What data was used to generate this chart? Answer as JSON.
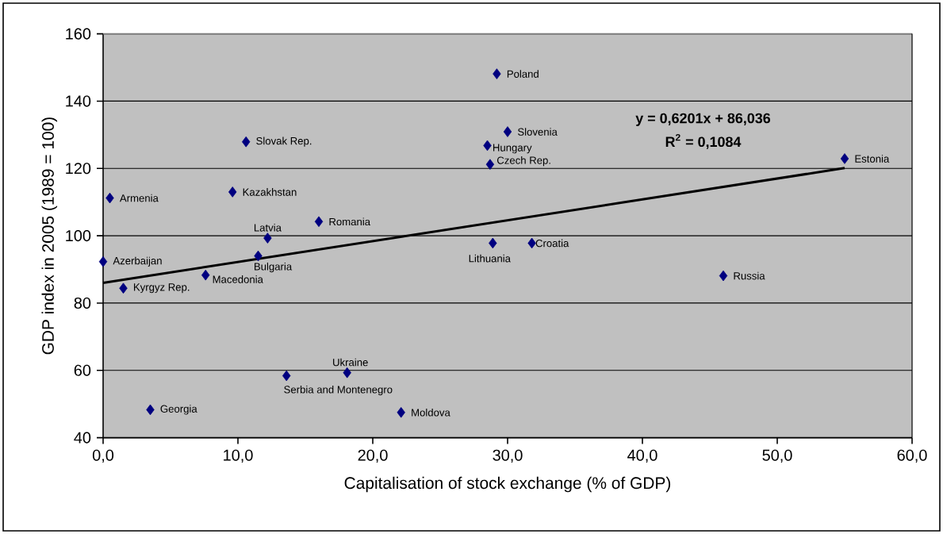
{
  "chart_data": {
    "type": "scatter",
    "xlabel": "Capitalisation of stock exchange (% of GDP)",
    "ylabel": "GDP index in 2005 (1989 = 100)",
    "xlim": [
      0,
      60
    ],
    "ylim": [
      40,
      160
    ],
    "xticks": [
      {
        "value": 0,
        "label": "0,0"
      },
      {
        "value": 10,
        "label": "10,0"
      },
      {
        "value": 20,
        "label": "20,0"
      },
      {
        "value": 30,
        "label": "30,0"
      },
      {
        "value": 40,
        "label": "40,0"
      },
      {
        "value": 50,
        "label": "50,0"
      },
      {
        "value": 60,
        "label": "60,0"
      }
    ],
    "yticks": [
      40,
      60,
      80,
      100,
      120,
      140,
      160
    ],
    "grid": "y",
    "marker": "diamond",
    "annotations": [
      "y = 0,6201x + 86,036",
      "R$^{2}$ = 0,1084"
    ],
    "series": [
      {
        "name": "Poland",
        "color": "#000080",
        "x": [
          29.2
        ],
        "values": [
          148.1
        ]
      },
      {
        "name": "Slovenia",
        "color": "#000080",
        "x": [
          30.0
        ],
        "values": [
          130.9
        ]
      },
      {
        "name": "Hungary",
        "color": "#000080",
        "x": [
          28.5
        ],
        "values": [
          126.8
        ]
      },
      {
        "name": "Czech Rep.",
        "color": "#000080",
        "x": [
          28.7
        ],
        "values": [
          121.2
        ]
      },
      {
        "name": "Estonia",
        "color": "#000080",
        "x": [
          55.0
        ],
        "values": [
          122.9
        ]
      },
      {
        "name": "Slovak Rep.",
        "color": "#000080",
        "x": [
          10.6
        ],
        "values": [
          127.9
        ]
      },
      {
        "name": "Armenia",
        "color": "#000080",
        "x": [
          0.5
        ],
        "values": [
          111.2
        ]
      },
      {
        "name": "Kazakhstan",
        "color": "#000080",
        "x": [
          9.6
        ],
        "values": [
          113.0
        ]
      },
      {
        "name": "Romania",
        "color": "#000080",
        "x": [
          16.0
        ],
        "values": [
          104.2
        ]
      },
      {
        "name": "Latvia",
        "color": "#000080",
        "x": [
          12.2
        ],
        "values": [
          99.3
        ]
      },
      {
        "name": "Bulgaria",
        "color": "#000080",
        "x": [
          11.5
        ],
        "values": [
          94.0
        ]
      },
      {
        "name": "Azerbaijan",
        "color": "#000080",
        "x": [
          0.0
        ],
        "values": [
          92.3
        ]
      },
      {
        "name": "Lithuania",
        "color": "#000080",
        "x": [
          28.9
        ],
        "values": [
          97.8
        ]
      },
      {
        "name": "Croatia",
        "color": "#000080",
        "x": [
          31.8
        ],
        "values": [
          97.8
        ]
      },
      {
        "name": "Macedonia",
        "color": "#000080",
        "x": [
          7.6
        ],
        "values": [
          88.3
        ]
      },
      {
        "name": "Russia",
        "color": "#000080",
        "x": [
          46.0
        ],
        "values": [
          88.1
        ]
      },
      {
        "name": "Kyrgyz Rep.",
        "color": "#000080",
        "x": [
          1.5
        ],
        "values": [
          84.4
        ]
      },
      {
        "name": "Ukraine",
        "color": "#000080",
        "x": [
          18.1
        ],
        "values": [
          59.3
        ]
      },
      {
        "name": "Serbia and Montenegro",
        "color": "#000080",
        "x": [
          13.6
        ],
        "values": [
          58.4
        ]
      },
      {
        "name": "Georgia",
        "color": "#000080",
        "x": [
          3.5
        ],
        "values": [
          48.3
        ]
      },
      {
        "name": "Moldova",
        "color": "#000080",
        "x": [
          22.1
        ],
        "values": [
          47.5
        ]
      },
      {
        "type": "line",
        "marker": "none",
        "color": "#000000",
        "x": [
          0,
          55.0
        ],
        "values": [
          86.0,
          120.1
        ]
      }
    ]
  }
}
